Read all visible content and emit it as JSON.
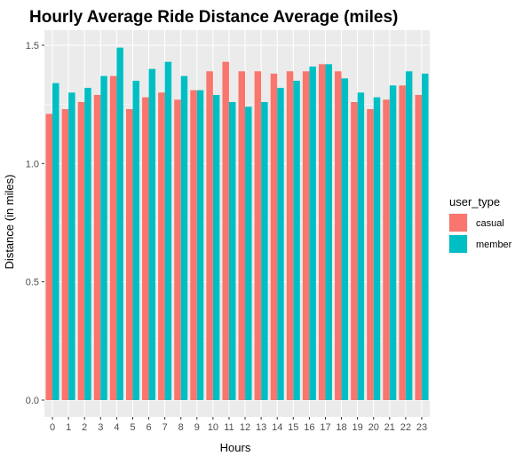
{
  "chart_data": {
    "type": "bar",
    "title": "Hourly Average Ride Distance Average (miles)",
    "xlabel": "Hours",
    "ylabel": "Distance (in miles)",
    "ylim": [
      0,
      1.5
    ],
    "y_ticks": [
      "0.0",
      "0.5",
      "1.0",
      "1.5"
    ],
    "categories": [
      "0",
      "1",
      "2",
      "3",
      "4",
      "5",
      "6",
      "7",
      "8",
      "9",
      "10",
      "11",
      "12",
      "13",
      "14",
      "15",
      "16",
      "17",
      "18",
      "19",
      "20",
      "21",
      "22",
      "23"
    ],
    "legend_title": "user_type",
    "legend_position": "right",
    "grid": true,
    "series": [
      {
        "name": "casual",
        "color": "#F8766D",
        "values": [
          1.21,
          1.23,
          1.26,
          1.29,
          1.37,
          1.23,
          1.28,
          1.3,
          1.27,
          1.31,
          1.39,
          1.43,
          1.39,
          1.39,
          1.38,
          1.39,
          1.39,
          1.42,
          1.39,
          1.26,
          1.23,
          1.27,
          1.33,
          1.29
        ]
      },
      {
        "name": "member",
        "color": "#00BFC4",
        "values": [
          1.34,
          1.3,
          1.32,
          1.37,
          1.49,
          1.35,
          1.4,
          1.43,
          1.37,
          1.31,
          1.29,
          1.26,
          1.24,
          1.26,
          1.32,
          1.35,
          1.41,
          1.42,
          1.36,
          1.3,
          1.28,
          1.33,
          1.39,
          1.38
        ]
      }
    ]
  }
}
